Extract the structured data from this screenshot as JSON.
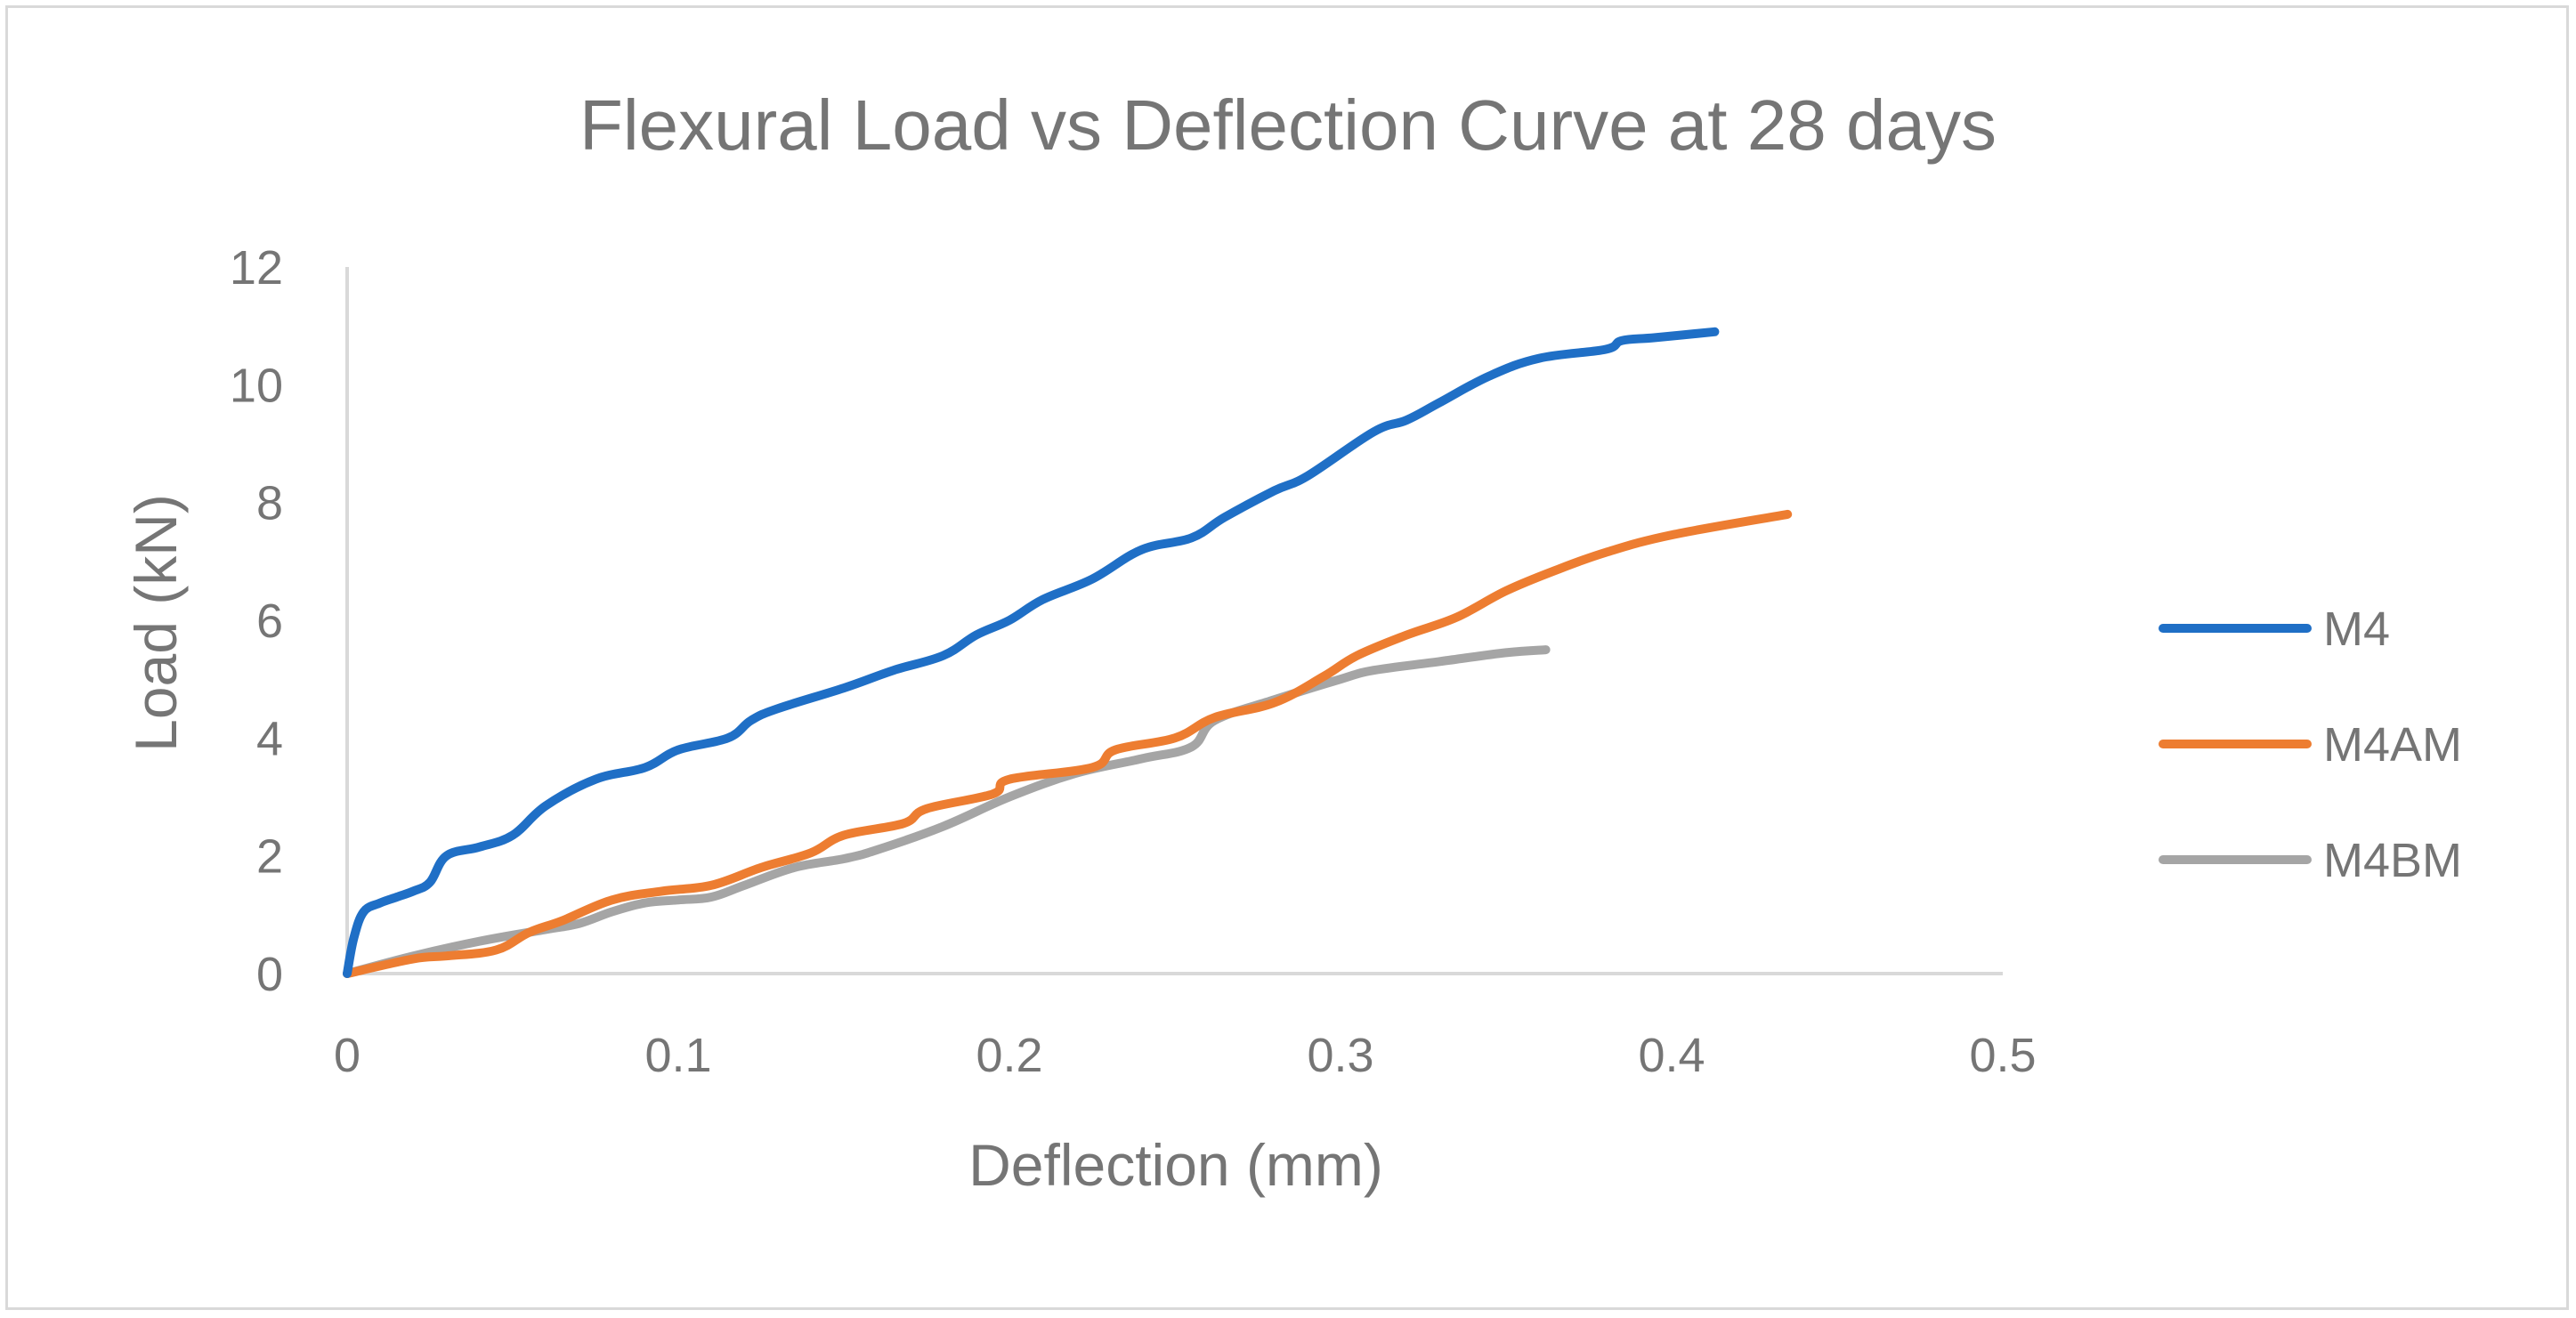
{
  "chart_data": {
    "type": "line",
    "title": "Flexural Load vs Deflection Curve at 28 days",
    "xlabel": "Deflection (mm)",
    "ylabel": "Load (kN)",
    "xlim": [
      0,
      0.5
    ],
    "ylim": [
      0,
      12
    ],
    "xticks": [
      0,
      0.1,
      0.2,
      0.3,
      0.4,
      0.5
    ],
    "xtick_labels": [
      "0",
      "0.1",
      "0.2",
      "0.3",
      "0.4",
      "0.5"
    ],
    "yticks": [
      0,
      2,
      4,
      6,
      8,
      10,
      12
    ],
    "ytick_labels": [
      "0",
      "2",
      "4",
      "6",
      "8",
      "10",
      "12"
    ],
    "grid": false,
    "legend_position": "right",
    "series": [
      {
        "name": "M4",
        "color": "#1f6fc6",
        "points": [
          [
            0,
            0
          ],
          [
            0.002,
            0.6
          ],
          [
            0.005,
            1.05
          ],
          [
            0.01,
            1.2
          ],
          [
            0.015,
            1.3
          ],
          [
            0.02,
            1.4
          ],
          [
            0.025,
            1.55
          ],
          [
            0.03,
            2.0
          ],
          [
            0.04,
            2.15
          ],
          [
            0.05,
            2.35
          ],
          [
            0.06,
            2.85
          ],
          [
            0.075,
            3.3
          ],
          [
            0.09,
            3.5
          ],
          [
            0.1,
            3.8
          ],
          [
            0.115,
            4.0
          ],
          [
            0.122,
            4.3
          ],
          [
            0.13,
            4.5
          ],
          [
            0.15,
            4.85
          ],
          [
            0.165,
            5.15
          ],
          [
            0.18,
            5.4
          ],
          [
            0.19,
            5.75
          ],
          [
            0.2,
            6.0
          ],
          [
            0.21,
            6.35
          ],
          [
            0.225,
            6.7
          ],
          [
            0.24,
            7.2
          ],
          [
            0.255,
            7.4
          ],
          [
            0.265,
            7.75
          ],
          [
            0.28,
            8.2
          ],
          [
            0.29,
            8.45
          ],
          [
            0.31,
            9.2
          ],
          [
            0.32,
            9.4
          ],
          [
            0.33,
            9.7
          ],
          [
            0.345,
            10.15
          ],
          [
            0.36,
            10.45
          ],
          [
            0.38,
            10.6
          ],
          [
            0.385,
            10.75
          ],
          [
            0.395,
            10.8
          ],
          [
            0.413,
            10.9
          ]
        ]
      },
      {
        "name": "M4AM",
        "color": "#ed7d31",
        "points": [
          [
            0,
            0
          ],
          [
            0.02,
            0.25
          ],
          [
            0.03,
            0.3
          ],
          [
            0.045,
            0.4
          ],
          [
            0.055,
            0.7
          ],
          [
            0.065,
            0.9
          ],
          [
            0.08,
            1.25
          ],
          [
            0.095,
            1.4
          ],
          [
            0.11,
            1.5
          ],
          [
            0.125,
            1.8
          ],
          [
            0.14,
            2.05
          ],
          [
            0.15,
            2.35
          ],
          [
            0.168,
            2.55
          ],
          [
            0.175,
            2.8
          ],
          [
            0.195,
            3.05
          ],
          [
            0.2,
            3.3
          ],
          [
            0.225,
            3.5
          ],
          [
            0.232,
            3.8
          ],
          [
            0.25,
            4.0
          ],
          [
            0.262,
            4.35
          ],
          [
            0.28,
            4.6
          ],
          [
            0.295,
            5.05
          ],
          [
            0.305,
            5.4
          ],
          [
            0.32,
            5.75
          ],
          [
            0.335,
            6.05
          ],
          [
            0.35,
            6.5
          ],
          [
            0.365,
            6.85
          ],
          [
            0.38,
            7.15
          ],
          [
            0.4,
            7.45
          ],
          [
            0.435,
            7.8
          ]
        ]
      },
      {
        "name": "M4BM",
        "color": "#a5a5a5",
        "points": [
          [
            0,
            0
          ],
          [
            0.02,
            0.3
          ],
          [
            0.04,
            0.55
          ],
          [
            0.06,
            0.75
          ],
          [
            0.07,
            0.85
          ],
          [
            0.08,
            1.05
          ],
          [
            0.09,
            1.2
          ],
          [
            0.1,
            1.25
          ],
          [
            0.11,
            1.3
          ],
          [
            0.12,
            1.5
          ],
          [
            0.135,
            1.8
          ],
          [
            0.15,
            1.95
          ],
          [
            0.16,
            2.1
          ],
          [
            0.18,
            2.5
          ],
          [
            0.2,
            3.0
          ],
          [
            0.22,
            3.4
          ],
          [
            0.24,
            3.65
          ],
          [
            0.255,
            3.85
          ],
          [
            0.262,
            4.3
          ],
          [
            0.28,
            4.65
          ],
          [
            0.3,
            5.0
          ],
          [
            0.31,
            5.15
          ],
          [
            0.33,
            5.3
          ],
          [
            0.35,
            5.45
          ],
          [
            0.362,
            5.5
          ]
        ]
      }
    ]
  }
}
